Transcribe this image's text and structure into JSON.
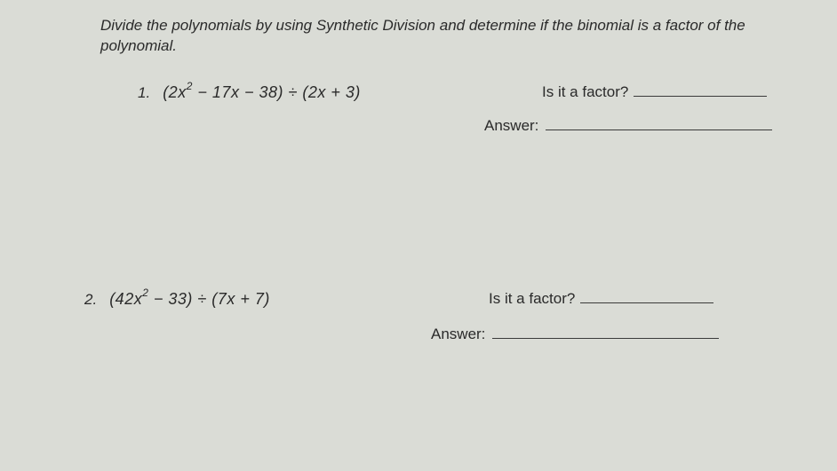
{
  "instructions": "Divide the polynomials by using Synthetic Division and determine if the binomial is a factor of the polynomial.",
  "problems": [
    {
      "number": "1.",
      "expr_parts": {
        "open": "(2",
        "var1": "x",
        "exp": "2",
        "mid": " − 17",
        "var2": "x",
        "mid2": " − 38) ÷ (2",
        "var3": "x",
        "close": " + 3)"
      },
      "factor_label": "Is it a factor?",
      "answer_label": "Answer:"
    },
    {
      "number": "2.",
      "expr_parts": {
        "open": "(42",
        "var1": "x",
        "exp": "2",
        "mid": " − 33) ÷ (7",
        "var2": "x",
        "mid2": " + 7)",
        "var3": "",
        "close": ""
      },
      "factor_label": "Is it a factor?",
      "answer_label": "Answer:"
    }
  ],
  "colors": {
    "background": "#dadcd6",
    "text": "#2a2a2a",
    "line": "#3a3a3a"
  },
  "typography": {
    "body_fontsize": 17,
    "expr_fontsize": 18,
    "font_family": "Arial"
  }
}
